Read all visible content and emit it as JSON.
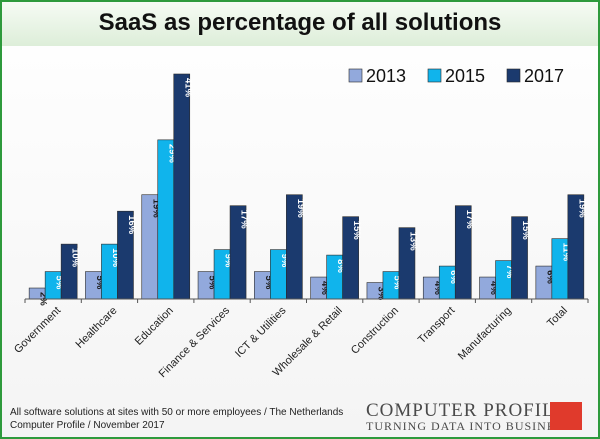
{
  "chart_data": {
    "type": "bar",
    "title": "SaaS as percentage of all solutions",
    "xlabel": "",
    "ylabel": "",
    "ylim": [
      0,
      42
    ],
    "grid": false,
    "legend_position": "top-right",
    "categories": [
      "Government",
      "Healthcare",
      "Education",
      "Finance & Services",
      "ICT & Utilities",
      "Wholesale & Retail",
      "Construction",
      "Transport",
      "Manufacturing",
      "Total"
    ],
    "series": [
      {
        "name": "2013",
        "color": "#92a9dc",
        "values": [
          2,
          5,
          19,
          5,
          5,
          4,
          3,
          4,
          4,
          6
        ],
        "labels": [
          "2%",
          "5%",
          "19%",
          "5%",
          "5%",
          "4%",
          "3%",
          "4%",
          "4%",
          "6%"
        ]
      },
      {
        "name": "2015",
        "color": "#10b4ec",
        "values": [
          5,
          10,
          29,
          9,
          9,
          8,
          5,
          6,
          7,
          11
        ],
        "labels": [
          "5%",
          "10%",
          "29%",
          "9%",
          "9%",
          "8%",
          "5%",
          "6%",
          "7%",
          "11%"
        ]
      },
      {
        "name": "2017",
        "color": "#1b3a6e",
        "values": [
          10,
          16,
          41,
          17,
          19,
          15,
          13,
          17,
          15,
          19
        ],
        "labels": [
          "10%",
          "16%",
          "41%",
          "17%",
          "19%",
          "15%",
          "13%",
          "17%",
          "15%",
          "19%"
        ]
      }
    ]
  },
  "footer": {
    "line1": "All software solutions at sites with 50 or more employees / The Netherlands",
    "line2": "Computer Profile / November 2017"
  },
  "logo": {
    "name": "COMPUTER PROFILE",
    "tagline": "TURNING DATA INTO BUSINESS",
    "accent_color": "#e03a2c"
  }
}
